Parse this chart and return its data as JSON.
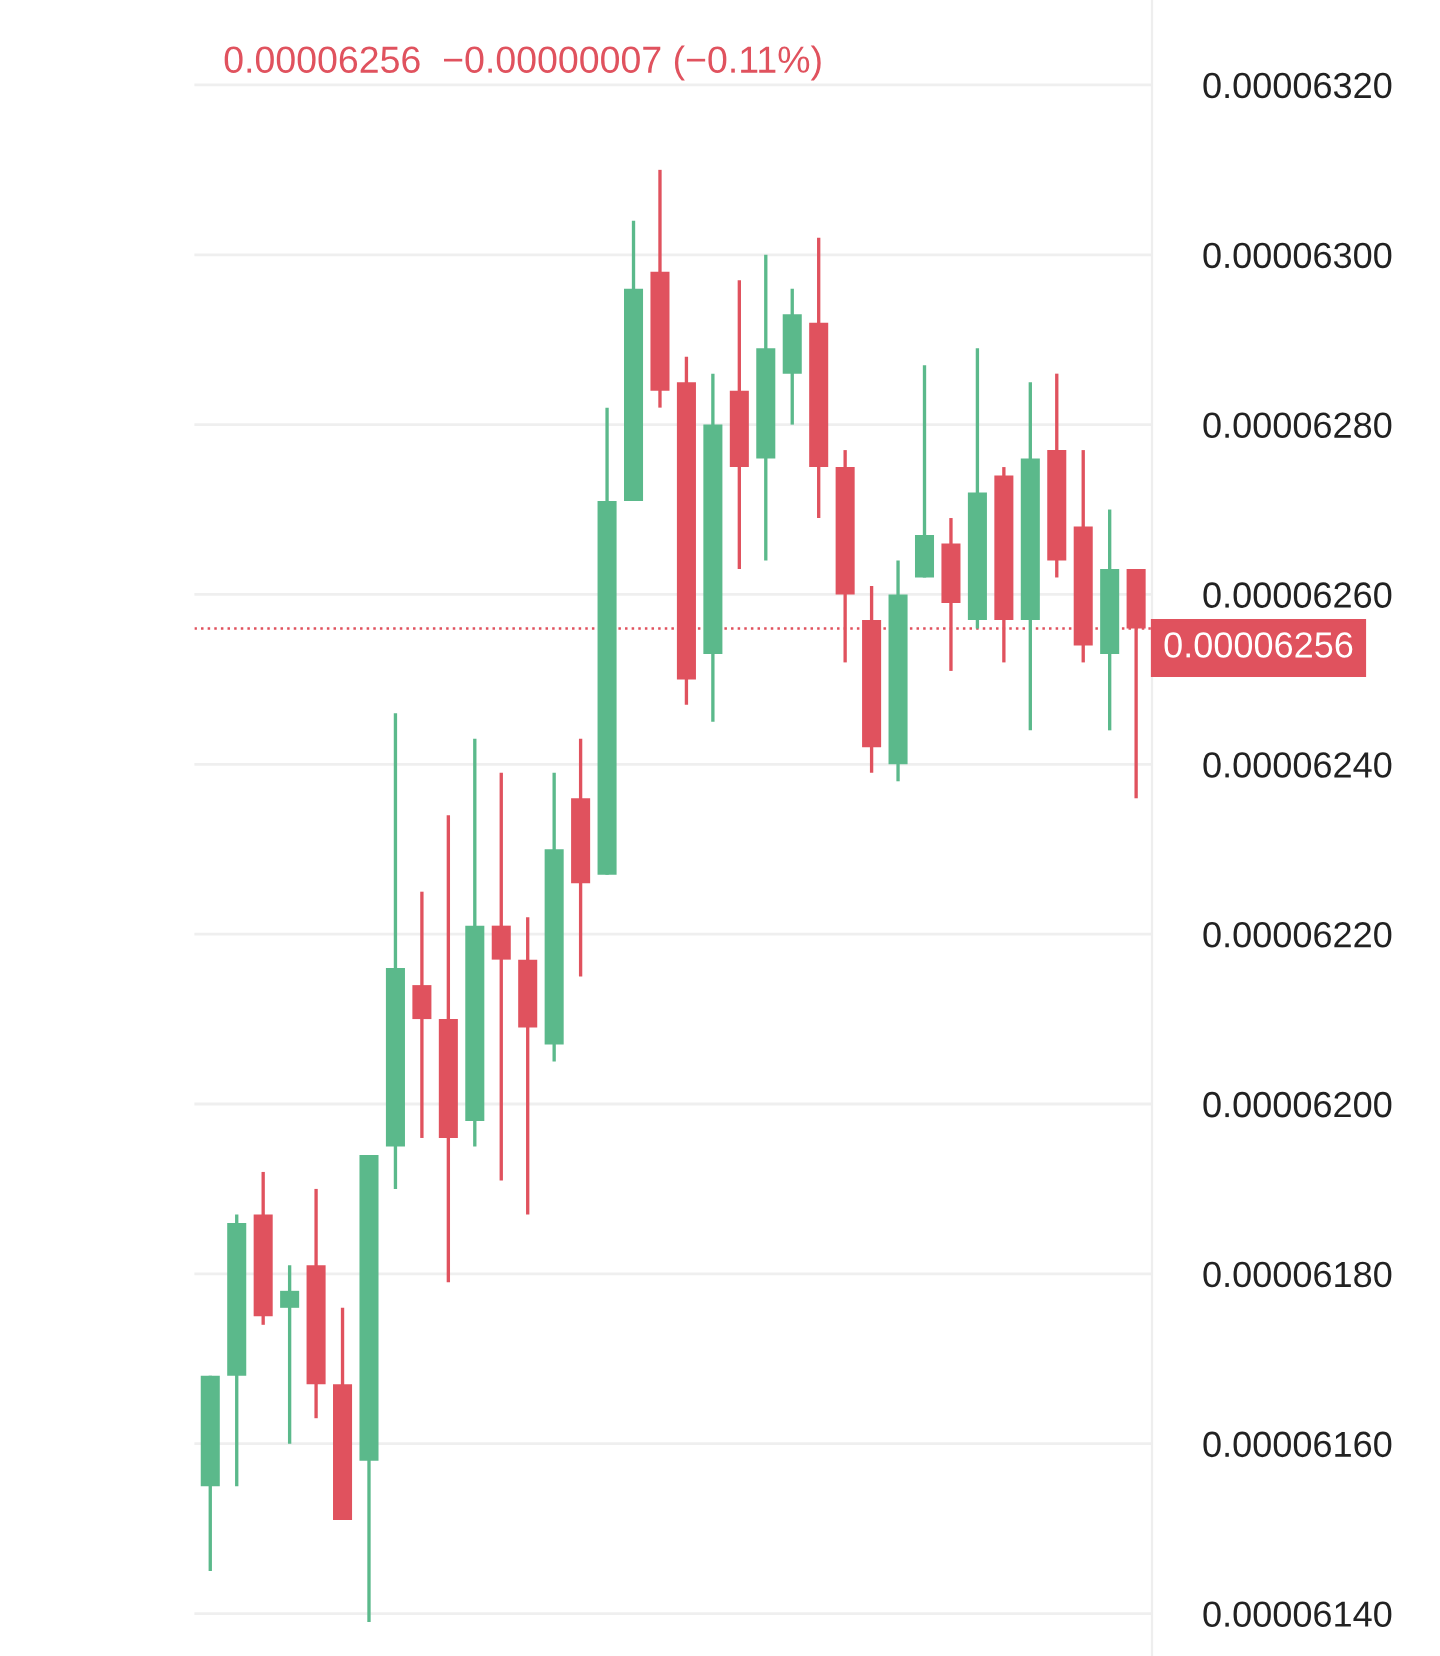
{
  "chart_data": {
    "type": "candlestick",
    "subtitle": "0.00006256  −0.00000007 (−0.11%)",
    "categories": [
      null,
      null,
      null,
      null,
      null,
      null,
      null,
      null,
      null,
      null,
      null,
      null,
      null,
      null,
      null,
      null,
      null,
      null,
      null,
      null,
      null,
      null,
      null,
      null,
      null,
      null,
      null,
      null,
      null,
      null,
      null,
      null,
      null,
      null,
      null,
      null
    ],
    "ohlc": [
      [
        6.155e-05,
        6.168e-05,
        6.145e-05,
        6.168e-05
      ],
      [
        6.168e-05,
        6.187e-05,
        6.155e-05,
        6.186e-05
      ],
      [
        6.187e-05,
        6.192e-05,
        6.174e-05,
        6.175e-05
      ],
      [
        6.176e-05,
        6.181e-05,
        6.16e-05,
        6.178e-05
      ],
      [
        6.181e-05,
        6.19e-05,
        6.163e-05,
        6.167e-05
      ],
      [
        6.167e-05,
        6.176e-05,
        6.151e-05,
        6.151e-05
      ],
      [
        6.158e-05,
        6.194e-05,
        6.139e-05,
        6.194e-05
      ],
      [
        6.195e-05,
        6.246e-05,
        6.19e-05,
        6.216e-05
      ],
      [
        6.214e-05,
        6.225e-05,
        6.196e-05,
        6.21e-05
      ],
      [
        6.21e-05,
        6.234e-05,
        6.179e-05,
        6.196e-05
      ],
      [
        6.198e-05,
        6.243e-05,
        6.195e-05,
        6.221e-05
      ],
      [
        6.221e-05,
        6.239e-05,
        6.191e-05,
        6.217e-05
      ],
      [
        6.217e-05,
        6.222e-05,
        6.187e-05,
        6.209e-05
      ],
      [
        6.207e-05,
        6.239e-05,
        6.205e-05,
        6.23e-05
      ],
      [
        6.236e-05,
        6.243e-05,
        6.215e-05,
        6.226e-05
      ],
      [
        6.227e-05,
        6.282e-05,
        6.227e-05,
        6.271e-05
      ],
      [
        6.271e-05,
        6.304e-05,
        6.271e-05,
        6.296e-05
      ],
      [
        6.298e-05,
        6.31e-05,
        6.282e-05,
        6.284e-05
      ],
      [
        6.285e-05,
        6.288e-05,
        6.247e-05,
        6.25e-05
      ],
      [
        6.253e-05,
        6.286e-05,
        6.245e-05,
        6.28e-05
      ],
      [
        6.284e-05,
        6.297e-05,
        6.263e-05,
        6.275e-05
      ],
      [
        6.276e-05,
        6.3e-05,
        6.264e-05,
        6.289e-05
      ],
      [
        6.286e-05,
        6.296e-05,
        6.28e-05,
        6.293e-05
      ],
      [
        6.292e-05,
        6.302e-05,
        6.269e-05,
        6.275e-05
      ],
      [
        6.275e-05,
        6.277e-05,
        6.252e-05,
        6.26e-05
      ],
      [
        6.257e-05,
        6.261e-05,
        6.239e-05,
        6.242e-05
      ],
      [
        6.24e-05,
        6.264e-05,
        6.238e-05,
        6.26e-05
      ],
      [
        6.262e-05,
        6.287e-05,
        6.262e-05,
        6.267e-05
      ],
      [
        6.266e-05,
        6.269e-05,
        6.251e-05,
        6.259e-05
      ],
      [
        6.257e-05,
        6.289e-05,
        6.256e-05,
        6.272e-05
      ],
      [
        6.274e-05,
        6.275e-05,
        6.252e-05,
        6.257e-05
      ],
      [
        6.257e-05,
        6.285e-05,
        6.244e-05,
        6.276e-05
      ],
      [
        6.277e-05,
        6.286e-05,
        6.262e-05,
        6.264e-05
      ],
      [
        6.268e-05,
        6.277e-05,
        6.252e-05,
        6.254e-05
      ],
      [
        6.253e-05,
        6.27e-05,
        6.244e-05,
        6.263e-05
      ],
      [
        6.263e-05,
        6.263e-05,
        6.236e-05,
        6.256e-05
      ]
    ],
    "colors": [
      "#5bb98b",
      "#5bb98b",
      "#e0525e",
      "#5bb98b",
      "#e0525e",
      "#e0525e",
      "#5bb98b",
      "#5bb98b",
      "#e0525e",
      "#e0525e",
      "#5bb98b",
      "#e0525e",
      "#e0525e",
      "#5bb98b",
      "#e0525e",
      "#5bb98b",
      "#5bb98b",
      "#e0525e",
      "#e0525e",
      "#5bb98b",
      "#e0525e",
      "#5bb98b",
      "#5bb98b",
      "#e0525e",
      "#e0525e",
      "#e0525e",
      "#5bb98b",
      "#5bb98b",
      "#e0525e",
      "#5bb98b",
      "#e0525e",
      "#5bb98b",
      "#e0525e",
      "#e0525e",
      "#5bb98b",
      "#e0525e"
    ],
    "ylim": [
      6.135e-05,
      6.33e-05
    ],
    "yticks": [
      {
        "value": 6.14e-05,
        "label": "0.00006140"
      },
      {
        "value": 6.16e-05,
        "label": "0.00006160"
      },
      {
        "value": 6.18e-05,
        "label": "0.00006180"
      },
      {
        "value": 6.2e-05,
        "label": "0.00006200"
      },
      {
        "value": 6.22e-05,
        "label": "0.00006220"
      },
      {
        "value": 6.24e-05,
        "label": "0.00006240"
      },
      {
        "value": 6.26e-05,
        "label": "0.00006260"
      },
      {
        "value": 6.28e-05,
        "label": "0.00006280"
      },
      {
        "value": 6.3e-05,
        "label": "0.00006300"
      },
      {
        "value": 6.32e-05,
        "label": "0.00006320"
      }
    ],
    "grid": "y",
    "tick_labels": "y",
    "ref_lines": [
      {
        "axis": "y",
        "value": 6.256e-05,
        "label": "0.00006256",
        "color": "#e0525e",
        "line_style": "dotted"
      }
    ]
  }
}
